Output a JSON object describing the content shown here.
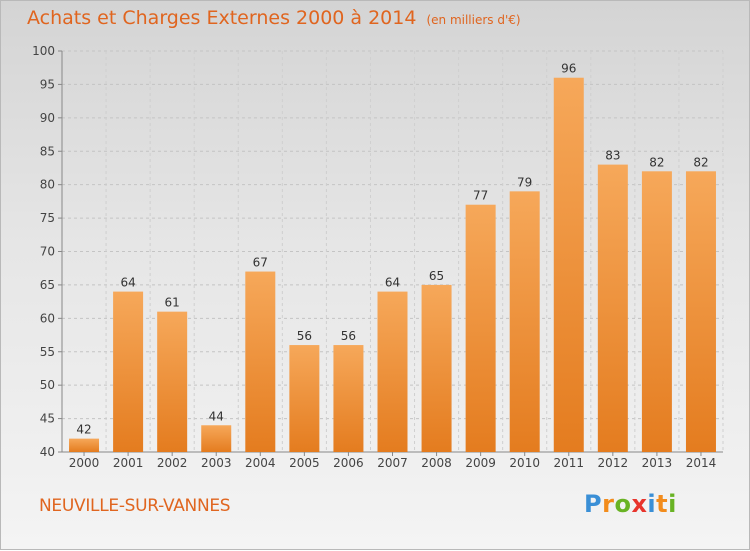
{
  "title": "Achats et Charges Externes 2000 à 2014",
  "unit": "(en milliers d'€)",
  "location": "NEUVILLE-SUR-VANNES",
  "brand": {
    "letters": [
      "P",
      "r",
      "o",
      "x",
      "i",
      "t",
      "i"
    ],
    "colors": [
      "#3a8fd6",
      "#f28c1c",
      "#69b324",
      "#e8342c",
      "#3a8fd6",
      "#f28c1c",
      "#69b324"
    ]
  },
  "colors": {
    "bar_light": "#f6a85a",
    "bar_dark": "#e47c1f",
    "accent": "#e0651f"
  },
  "chart_data": {
    "type": "bar",
    "categories": [
      "2000",
      "2001",
      "2002",
      "2003",
      "2004",
      "2005",
      "2006",
      "2007",
      "2008",
      "2009",
      "2010",
      "2011",
      "2012",
      "2013",
      "2014"
    ],
    "values": [
      42,
      64,
      61,
      44,
      67,
      56,
      56,
      64,
      65,
      77,
      79,
      96,
      83,
      82,
      82
    ],
    "ylim": [
      40,
      100
    ],
    "yticks": [
      40,
      45,
      50,
      55,
      60,
      65,
      70,
      75,
      80,
      85,
      90,
      95,
      100
    ],
    "grid": true,
    "data_labels": true
  }
}
